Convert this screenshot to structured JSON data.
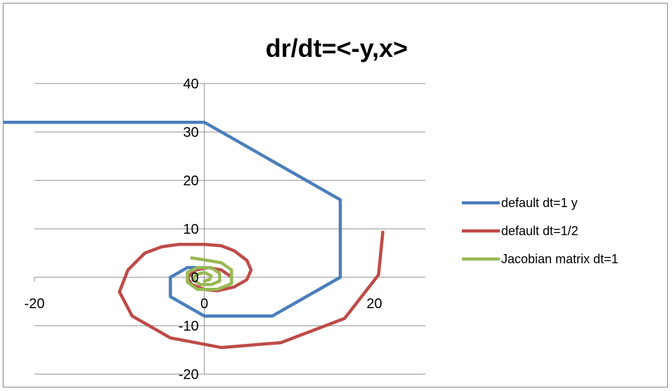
{
  "chart_data": {
    "type": "line",
    "title": "dr/dt=<-y,x>",
    "xlabel": "",
    "ylabel": "",
    "xlim": [
      -20,
      26
    ],
    "ylim": [
      -20,
      40
    ],
    "x_ticks": [
      -20,
      0,
      20
    ],
    "y_ticks": [
      -20,
      -10,
      0,
      10,
      20,
      30,
      40
    ],
    "gridlines": "horizontal",
    "legend_position": "right",
    "series": [
      {
        "name": "default dt=1 y",
        "color": "#4a7ebb",
        "points": [
          [
            -25,
            32
          ],
          [
            0,
            32
          ],
          [
            16,
            16
          ],
          [
            16,
            0
          ],
          [
            8,
            -8
          ],
          [
            0,
            -8
          ],
          [
            -4,
            -4
          ],
          [
            -4,
            0
          ],
          [
            -2,
            2
          ],
          [
            0,
            2
          ]
        ]
      },
      {
        "name": "default dt=1/2",
        "color": "#be4b48",
        "points": [
          [
            21,
            9.3
          ],
          [
            20.5,
            0.5
          ],
          [
            16.5,
            -8.5
          ],
          [
            9,
            -13.5
          ],
          [
            2,
            -14.5
          ],
          [
            -4,
            -12.5
          ],
          [
            -8.5,
            -8
          ],
          [
            -10,
            -3
          ],
          [
            -9,
            1.5
          ],
          [
            -7,
            5
          ],
          [
            -5,
            6.3
          ],
          [
            -3,
            6.8
          ],
          [
            0,
            6.8
          ],
          [
            2,
            6.5
          ],
          [
            3.5,
            5.5
          ],
          [
            5,
            3.5
          ],
          [
            5.5,
            1.5
          ],
          [
            5,
            -0.5
          ],
          [
            3.5,
            -2
          ],
          [
            1.5,
            -2.8
          ],
          [
            0,
            -2.5
          ],
          [
            -1.5,
            -1.5
          ],
          [
            -2,
            0
          ],
          [
            -1,
            1.5
          ],
          [
            0.5,
            2
          ],
          [
            2,
            1.5
          ],
          [
            3,
            0.3
          ]
        ]
      },
      {
        "name": "Jacobian matrix dt=1",
        "color": "#98b954",
        "points": [
          [
            -1.5,
            4
          ],
          [
            0,
            3.6
          ],
          [
            2,
            3
          ],
          [
            3.2,
            1.5
          ],
          [
            3.2,
            -1.3
          ],
          [
            1.5,
            -2.5
          ],
          [
            -0.8,
            -2.5
          ],
          [
            -2,
            -1
          ],
          [
            -2,
            1
          ],
          [
            -0.8,
            2
          ],
          [
            0.8,
            2
          ],
          [
            1.8,
            0.8
          ],
          [
            1.8,
            -0.8
          ],
          [
            0.8,
            -1.5
          ],
          [
            -0.5,
            -1.5
          ],
          [
            -1.3,
            -0.5
          ],
          [
            -1,
            0.5
          ],
          [
            0,
            1
          ],
          [
            0.8,
            0.3
          ],
          [
            0.6,
            -0.5
          ],
          [
            0,
            -0.8
          ]
        ]
      }
    ]
  }
}
